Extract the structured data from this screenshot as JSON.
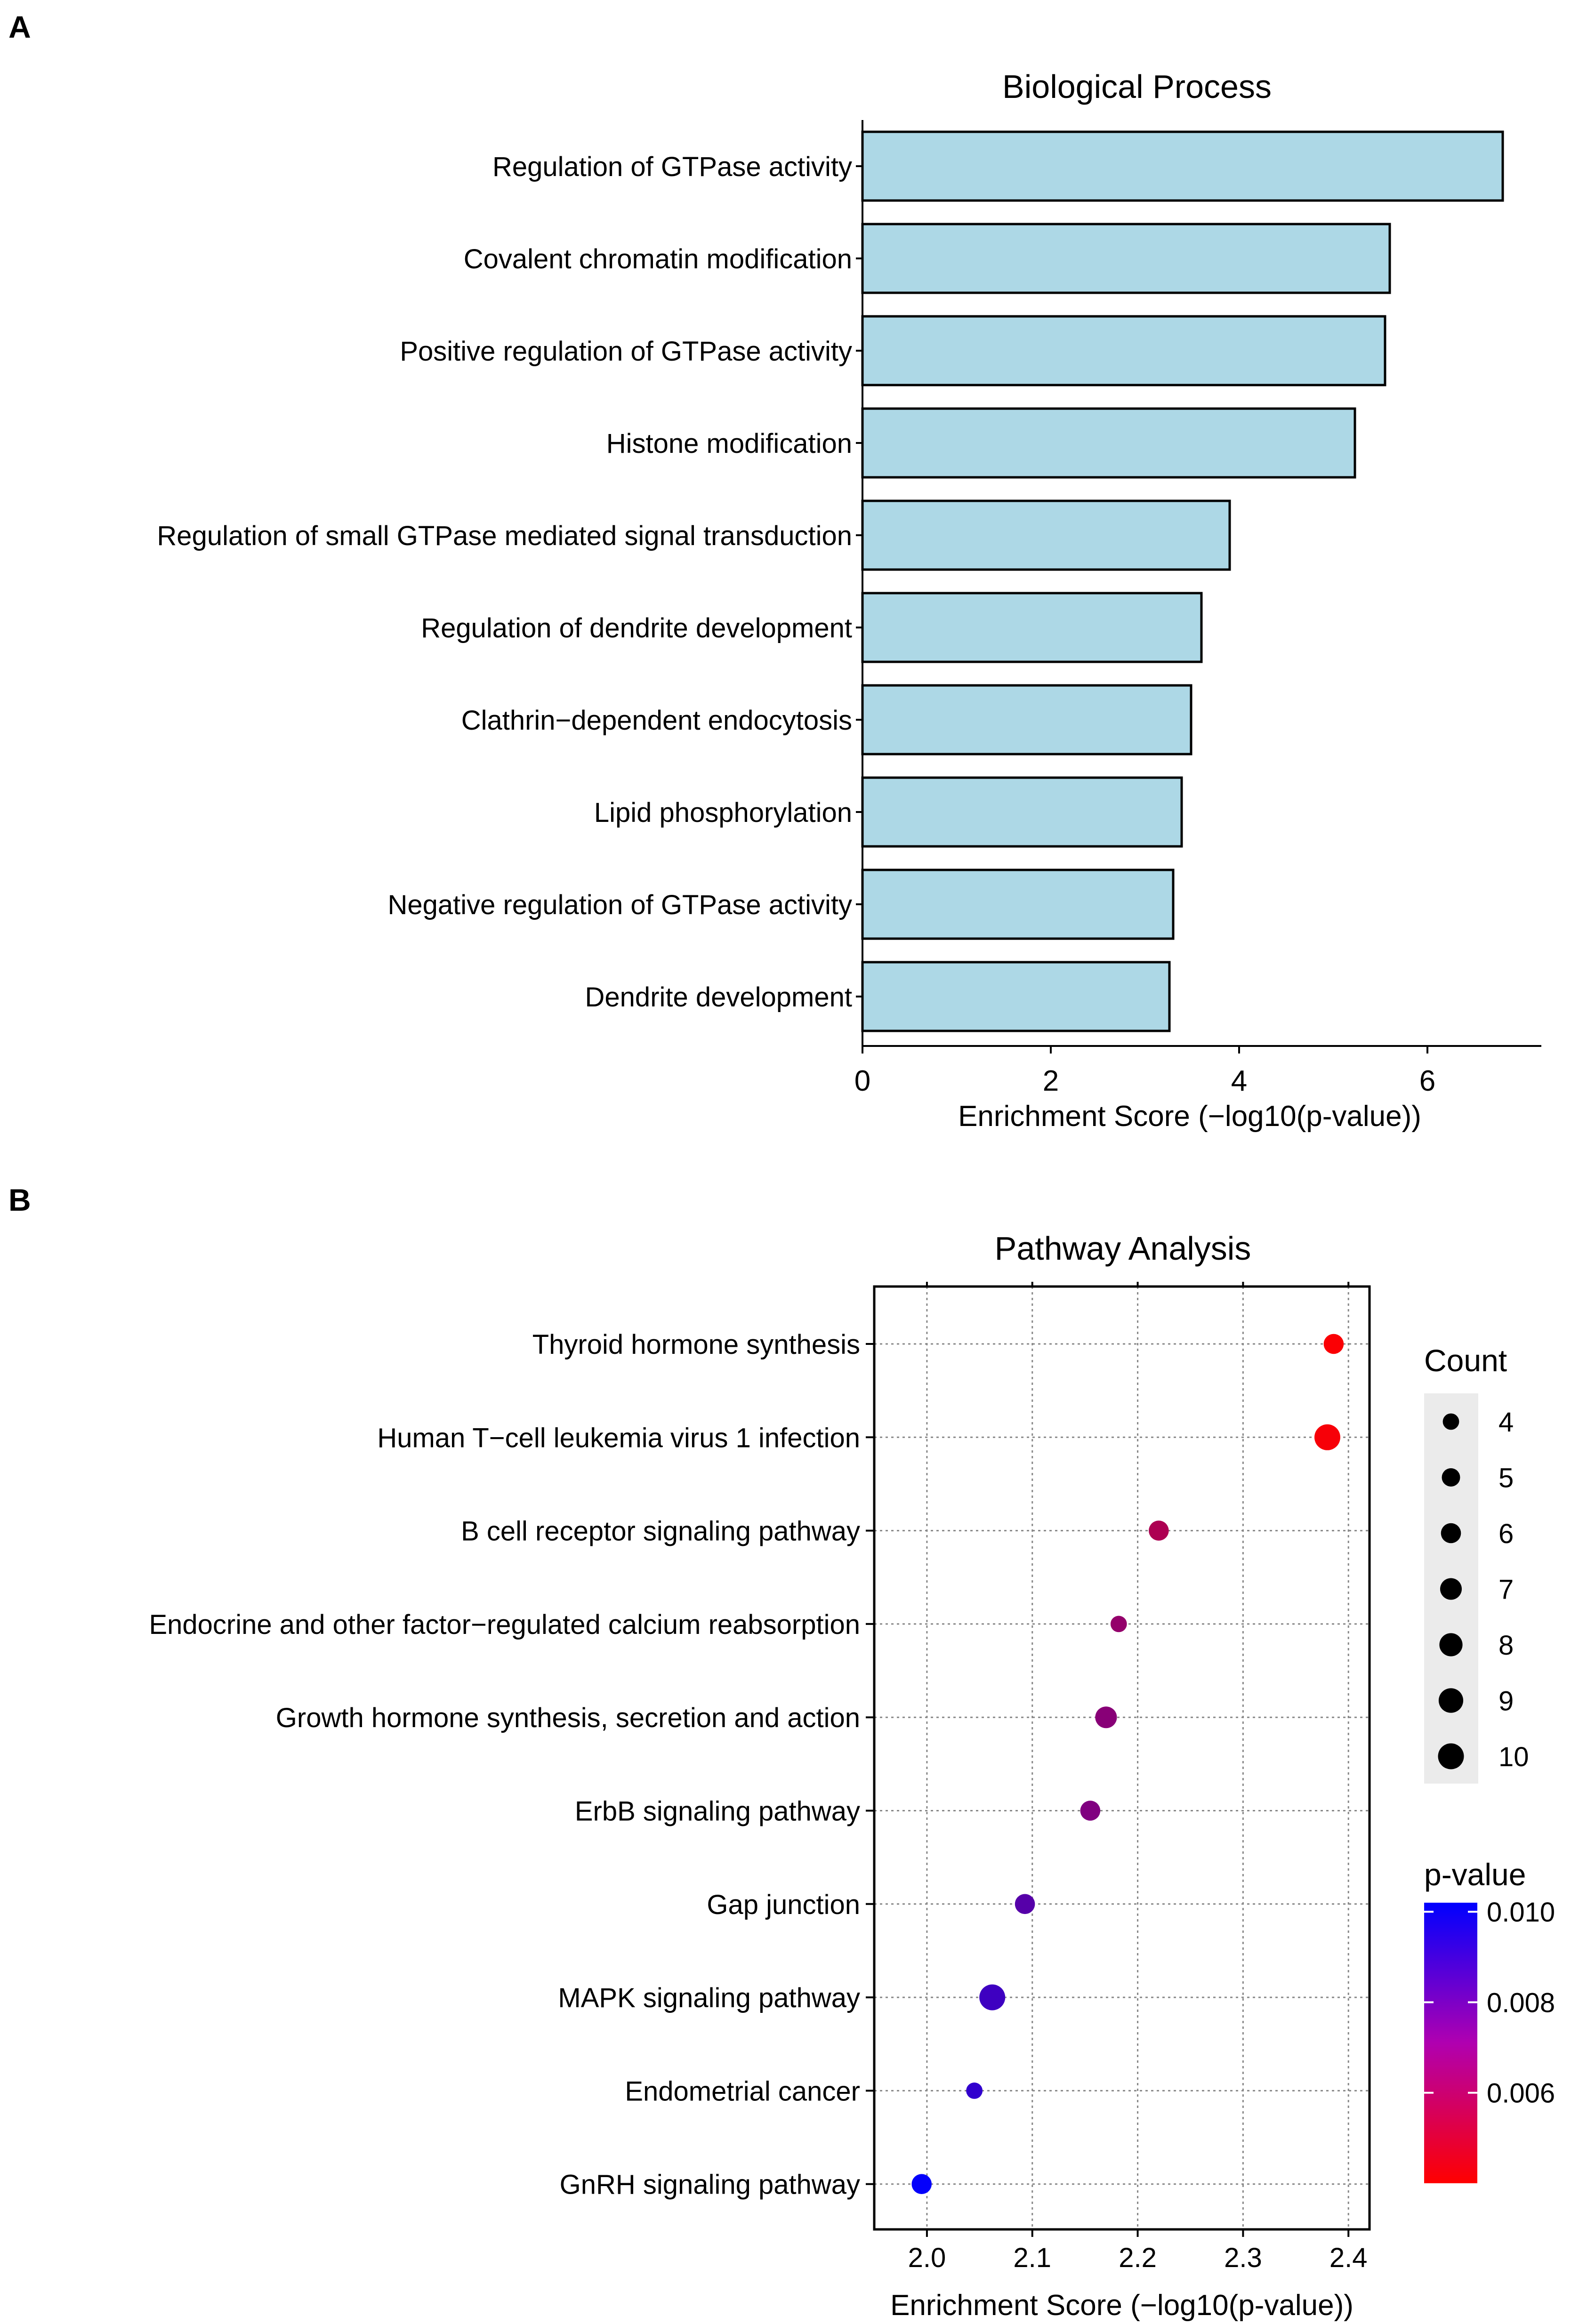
{
  "panels": {
    "a_label": "A",
    "b_label": "B"
  },
  "chart_data": [
    {
      "type": "bar",
      "orientation": "horizontal",
      "title": "Biological Process",
      "xlabel": "Enrichment Score (−log10(p-value))",
      "ylabel": "",
      "xlim": [
        0,
        7.1
      ],
      "xticks": [
        0,
        2,
        4,
        6
      ],
      "xtick_labels": [
        "0",
        "2",
        "4",
        "6"
      ],
      "bar_color": "#add8e6",
      "bar_edge_color": "#000000",
      "categories": [
        "Regulation of GTPase activity",
        "Covalent chromatin modification",
        "Positive regulation of GTPase activity",
        "Histone modification",
        "Regulation of small GTPase mediated signal transduction",
        "Regulation of dendrite development",
        "Clathrin−dependent endocytosis",
        "Lipid phosphorylation",
        "Negative regulation of GTPase activity",
        "Dendrite development"
      ],
      "values": [
        6.8,
        5.6,
        5.55,
        5.23,
        3.9,
        3.6,
        3.49,
        3.39,
        3.3,
        3.26
      ]
    },
    {
      "type": "scatter",
      "title": "Pathway Analysis",
      "xlabel": "Enrichment Score (−log10(p-value))",
      "ylabel": "",
      "xlim": [
        1.95,
        2.42
      ],
      "xticks": [
        2.0,
        2.1,
        2.2,
        2.3,
        2.4
      ],
      "xtick_labels": [
        "2.0",
        "2.1",
        "2.2",
        "2.3",
        "2.4"
      ],
      "grid": true,
      "categories": [
        "Thyroid hormone synthesis",
        "Human T−cell leukemia virus 1 infection",
        "B cell receptor signaling pathway",
        "Endocrine and other factor−regulated calcium reabsorption",
        "Growth hormone synthesis, secretion and action",
        "ErbB signaling pathway",
        "Gap junction",
        "MAPK signaling pathway",
        "Endometrial cancer",
        "GnRH signaling pathway"
      ],
      "x": [
        2.386,
        2.38,
        2.22,
        2.182,
        2.17,
        2.155,
        2.093,
        2.062,
        2.045,
        1.995
      ],
      "count": [
        6,
        10,
        6,
        4,
        7,
        6,
        6,
        10,
        4,
        6
      ],
      "p_value": [
        0.0041,
        0.0042,
        0.006,
        0.0066,
        0.0069,
        0.0071,
        0.0081,
        0.0087,
        0.009,
        0.0101
      ],
      "size_legend": {
        "title": "Count",
        "values": [
          4,
          5,
          6,
          7,
          8,
          9,
          10
        ],
        "labels": [
          "4",
          "5",
          "6",
          "7",
          "8",
          "9",
          "10"
        ]
      },
      "color_legend": {
        "title": "p-value",
        "range": [
          0.004,
          0.0102
        ],
        "ticks": [
          0.01,
          0.008,
          0.006
        ],
        "tick_labels": [
          "0.010",
          "0.008",
          "0.006"
        ],
        "low_color": "#ff0000",
        "high_color": "#0000ff"
      }
    }
  ]
}
